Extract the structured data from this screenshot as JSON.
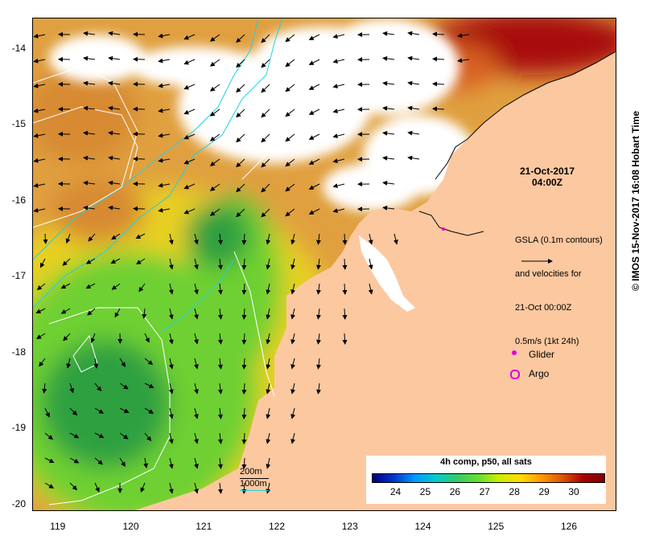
{
  "map": {
    "timestamp_date": "21-Oct-2017",
    "timestamp_time": "04:00Z",
    "gsla_lines": [
      "GSLA (0.1m contours)",
      "and velocities for",
      "21-Oct 00:00Z",
      "0.5m/s (1kt 24h)"
    ],
    "legend_glider": "Glider",
    "legend_argo": "Argo",
    "contour_200": "200m",
    "contour_1000": "1000m",
    "colorbar_title": "4h comp, p50, all sats",
    "colorbar_ticks": [
      "24",
      "25",
      "26",
      "27",
      "28",
      "29",
      "30"
    ],
    "colorbar_min": 23.2,
    "colorbar_max": 31.0,
    "colorbar_colors": [
      "#00007f",
      "#0033cc",
      "#0099ff",
      "#00cccc",
      "#33cc66",
      "#66dd33",
      "#ccee00",
      "#ffdd00",
      "#ff9900",
      "#dd5500",
      "#aa0000",
      "#7f0000"
    ],
    "credit": "© IMOS 15-Nov-2017 16:08 Hobart Time",
    "lat_ticks": [
      "-14",
      "-15",
      "-16",
      "-17",
      "-18",
      "-19",
      "-20"
    ],
    "lat_values": [
      -14,
      -15,
      -16,
      -17,
      -18,
      -19,
      -20
    ],
    "lon_ticks": [
      "119",
      "120",
      "121",
      "122",
      "123",
      "124",
      "125",
      "126"
    ],
    "lon_values": [
      119,
      120,
      121,
      122,
      123,
      124,
      125,
      126
    ],
    "lon_range": [
      118.65,
      126.65
    ],
    "lat_range": [
      -20.1,
      -13.6
    ],
    "colors": {
      "land": "#fcc8a0",
      "sst_warm": "#e0a040",
      "sst_hot": "#a81010",
      "sst_mid": "#e8d020",
      "sst_cool": "#6ed030",
      "sst_cold": "#2ea040",
      "isobath": "#22d0e0",
      "gsla": "#ffffff",
      "glider": "#dd00dd",
      "argo": "#dd00dd"
    }
  }
}
